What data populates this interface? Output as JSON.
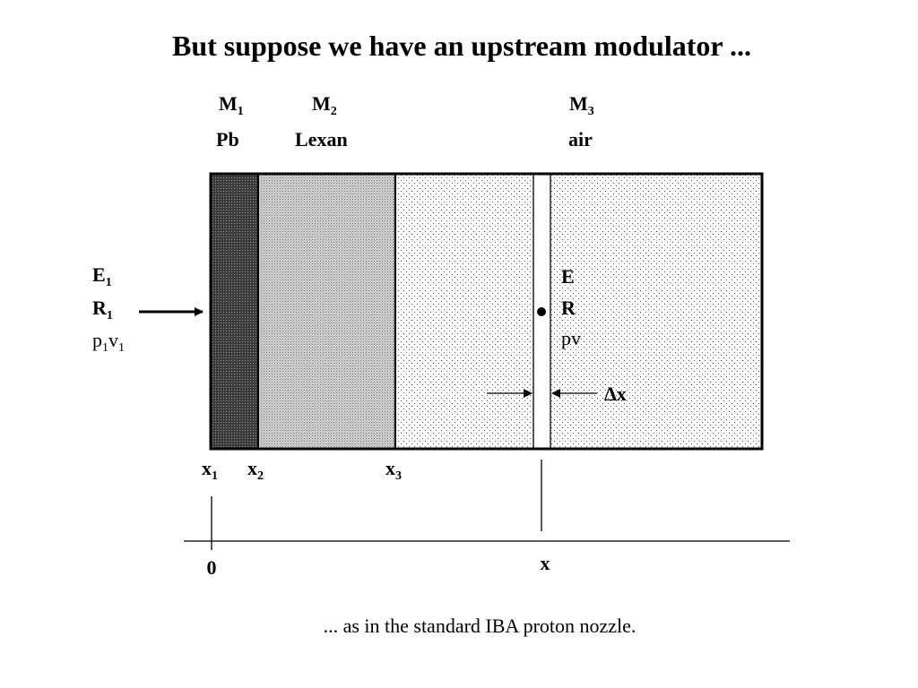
{
  "title": "But suppose we have an upstream modulator ...",
  "caption": "... as in the standard IBA proton nozzle.",
  "materials": [
    {
      "main": "M",
      "sub": "1",
      "name": "Pb"
    },
    {
      "main": "M",
      "sub": "2",
      "name": "Lexan"
    },
    {
      "main": "M",
      "sub": "3",
      "name": "air"
    }
  ],
  "incoming": {
    "energy": {
      "main": "E",
      "sub": "1"
    },
    "range": {
      "main": "R",
      "sub": "1"
    },
    "momentum": {
      "p": "p",
      "p_sub": "1",
      "v": "v",
      "v_sub": "1"
    }
  },
  "slab": {
    "energy": "E",
    "range": "R",
    "momentum": "pv",
    "thickness": "Δx"
  },
  "boundaries": [
    {
      "main": "x",
      "sub": "1"
    },
    {
      "main": "x",
      "sub": "2"
    },
    {
      "main": "x",
      "sub": "3"
    }
  ],
  "axis": {
    "origin": "0",
    "position": "x"
  }
}
